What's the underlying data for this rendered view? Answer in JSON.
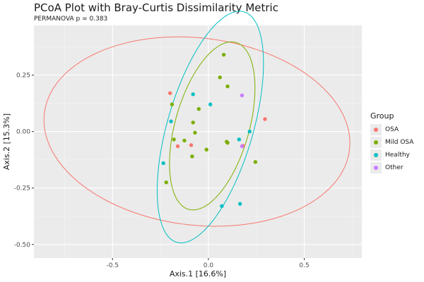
{
  "chart_data": {
    "type": "scatter",
    "title": "PCoA Plot with Bray-Curtis Dissimilarity Metric",
    "subtitle": "PERMANOVA p = 0.383",
    "xlabel": "Axis.1  [16.6%]",
    "ylabel": "Axis.2  [15.3%]",
    "xlim": [
      -0.91,
      0.8
    ],
    "ylim": [
      -0.56,
      0.47
    ],
    "xticks": [
      -0.5,
      0.0,
      0.5
    ],
    "xtick_labels": [
      "-0.5",
      "0.0",
      "0.5"
    ],
    "yticks": [
      -0.5,
      -0.25,
      0.0,
      0.25
    ],
    "ytick_labels": [
      "-0.50",
      "-0.25",
      "0.00",
      "0.25"
    ],
    "grid": true,
    "legend_title": "Group",
    "legend_position": "right",
    "series": [
      {
        "name": "OSA",
        "color": "#F8766D",
        "points": [
          [
            -0.2,
            0.17
          ],
          [
            -0.16,
            -0.065
          ],
          [
            -0.09,
            -0.06
          ],
          [
            0.295,
            0.055
          ],
          [
            0.18,
            -0.063
          ]
        ],
        "ellipse": {
          "cx": -0.06,
          "cy": 0.0,
          "rx": 0.8,
          "ry": 0.415,
          "angle": -5
        }
      },
      {
        "name": "Mild OSA",
        "color": "#7CAE00",
        "points": [
          [
            0.08,
            0.34
          ],
          [
            0.06,
            0.24
          ],
          [
            0.1,
            0.2
          ],
          [
            -0.19,
            0.12
          ],
          [
            -0.05,
            0.1
          ],
          [
            -0.08,
            0.04
          ],
          [
            -0.18,
            -0.035
          ],
          [
            -0.125,
            -0.04
          ],
          [
            -0.07,
            -0.005
          ],
          [
            -0.01,
            -0.08
          ],
          [
            0.095,
            -0.045
          ],
          [
            0.1,
            -0.05
          ],
          [
            -0.085,
            -0.11
          ],
          [
            0.245,
            -0.135
          ],
          [
            -0.22,
            -0.225
          ]
        ],
        "ellipse": {
          "cx": 0.02,
          "cy": 0.025,
          "rx": 0.39,
          "ry": 0.19,
          "angle": 70
        }
      },
      {
        "name": "Healthy",
        "color": "#00BFC4",
        "points": [
          [
            -0.08,
            0.165
          ],
          [
            0.01,
            0.12
          ],
          [
            -0.195,
            0.045
          ],
          [
            0.215,
            0.0
          ],
          [
            0.16,
            -0.035
          ],
          [
            -0.235,
            -0.14
          ],
          [
            0.07,
            -0.33
          ],
          [
            0.165,
            -0.32
          ]
        ],
        "ellipse": {
          "cx": 0.01,
          "cy": 0.02,
          "rx": 0.54,
          "ry": 0.22,
          "angle": 70
        }
      },
      {
        "name": "Other",
        "color": "#C77CFF",
        "points": [
          [
            0.175,
            0.16
          ],
          [
            0.175,
            -0.065
          ]
        ],
        "ellipse": null
      }
    ]
  }
}
